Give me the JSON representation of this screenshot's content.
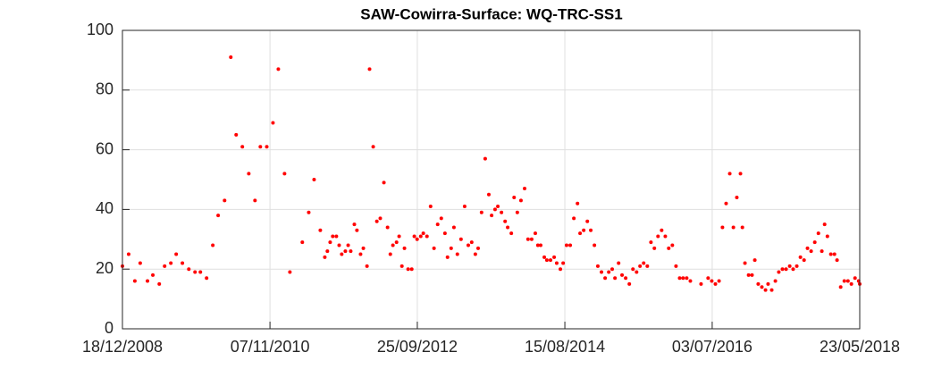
{
  "chart_data": {
    "type": "scatter",
    "title": "SAW-Cowirra-Surface: WQ-TRC-SS1",
    "color": "#ff0000",
    "grid": true,
    "xlim": [
      "18/12/2008",
      "23/05/2018"
    ],
    "xticks": [
      "18/12/2008",
      "07/11/2010",
      "25/09/2012",
      "15/08/2014",
      "03/07/2016",
      "23/05/2018"
    ],
    "ylim": [
      0,
      100
    ],
    "yticks": [
      0,
      20,
      40,
      60,
      80,
      100
    ],
    "x": [
      "18/12/2008",
      "16/01/2009",
      "14/02/2009",
      "11/03/2009",
      "14/04/2009",
      "09/05/2009",
      "08/06/2009",
      "03/07/2009",
      "01/08/2009",
      "26/08/2009",
      "24/09/2009",
      "24/10/2009",
      "22/11/2009",
      "17/12/2009",
      "15/01/2010",
      "13/02/2010",
      "10/03/2010",
      "09/04/2010",
      "08/05/2010",
      "02/06/2010",
      "01/07/2010",
      "31/07/2010",
      "29/08/2010",
      "23/09/2010",
      "23/10/2010",
      "21/11/2010",
      "16/12/2010",
      "14/01/2011",
      "08/02/2011",
      "07/04/2011",
      "07/05/2011",
      "01/06/2011",
      "30/06/2011",
      "21/07/2011",
      "02/08/2011",
      "15/08/2011",
      "27/08/2011",
      "13/09/2011",
      "26/09/2011",
      "08/10/2011",
      "25/10/2011",
      "07/11/2011",
      "19/11/2011",
      "06/12/2011",
      "18/12/2011",
      "04/01/2012",
      "17/01/2012",
      "03/02/2012",
      "15/02/2012",
      "03/03/2012",
      "20/03/2012",
      "05/04/2012",
      "22/04/2012",
      "09/05/2012",
      "22/05/2012",
      "03/06/2012",
      "20/06/2012",
      "02/07/2012",
      "15/07/2012",
      "27/07/2012",
      "13/08/2012",
      "30/08/2012",
      "11/09/2012",
      "24/09/2012",
      "11/10/2012",
      "23/10/2012",
      "09/11/2012",
      "26/11/2012",
      "12/12/2012",
      "29/12/2012",
      "15/01/2013",
      "01/02/2013",
      "13/02/2013",
      "02/03/2013",
      "15/03/2013",
      "31/03/2013",
      "17/04/2013",
      "04/05/2013",
      "21/05/2013",
      "06/06/2013",
      "23/06/2013",
      "06/07/2013",
      "22/07/2013",
      "08/08/2013",
      "25/08/2013",
      "07/09/2013",
      "23/09/2013",
      "06/10/2013",
      "23/10/2013",
      "09/11/2013",
      "21/11/2013",
      "08/12/2013",
      "21/12/2013",
      "05/01/2014",
      "22/01/2014",
      "08/02/2014",
      "24/02/2014",
      "13/03/2014",
      "30/03/2014",
      "11/04/2014",
      "24/04/2014",
      "11/05/2014",
      "23/05/2014",
      "09/06/2014",
      "26/06/2014",
      "08/07/2014",
      "25/07/2014",
      "07/08/2014",
      "23/08/2014",
      "09/09/2014",
      "26/09/2014",
      "13/10/2014",
      "25/10/2014",
      "11/11/2014",
      "28/11/2014",
      "14/12/2014",
      "31/12/2014",
      "16/01/2015",
      "02/02/2015",
      "19/02/2015",
      "08/03/2015",
      "24/03/2015",
      "06/04/2015",
      "23/04/2015",
      "09/05/2015",
      "26/05/2015",
      "12/06/2015",
      "29/06/2015",
      "16/07/2015",
      "01/08/2015",
      "18/08/2015",
      "04/09/2015",
      "21/09/2015",
      "07/10/2015",
      "24/10/2015",
      "10/11/2015",
      "27/11/2015",
      "13/12/2015",
      "30/12/2015",
      "16/01/2016",
      "02/02/2016",
      "18/02/2016",
      "06/03/2016",
      "23/03/2016",
      "12/05/2016",
      "14/06/2016",
      "01/07/2016",
      "18/07/2016",
      "04/08/2016",
      "20/08/2016",
      "06/09/2016",
      "23/09/2016",
      "10/10/2016",
      "26/10/2016",
      "12/11/2016",
      "21/11/2016",
      "03/12/2016",
      "20/12/2016",
      "05/01/2017",
      "18/01/2017",
      "03/02/2017",
      "20/02/2017",
      "09/03/2017",
      "21/03/2017",
      "07/04/2017",
      "24/04/2017",
      "10/05/2017",
      "27/05/2017",
      "13/06/2017",
      "30/06/2017",
      "16/07/2017",
      "02/08/2017",
      "19/08/2017",
      "05/09/2017",
      "21/09/2017",
      "08/10/2017",
      "25/10/2017",
      "11/11/2017",
      "27/11/2017",
      "10/12/2017",
      "23/12/2017",
      "08/01/2018",
      "25/01/2018",
      "06/02/2018",
      "23/02/2018",
      "12/03/2018",
      "29/03/2018",
      "14/04/2018",
      "01/05/2018",
      "18/05/2018",
      "23/05/2018"
    ],
    "values": [
      21,
      25,
      16,
      22,
      16,
      18,
      15,
      21,
      22,
      25,
      22,
      20,
      19,
      19,
      17,
      28,
      38,
      43,
      91,
      65,
      61,
      52,
      43,
      61,
      61,
      69,
      87,
      52,
      19,
      29,
      39,
      50,
      33,
      24,
      26,
      29,
      31,
      31,
      28,
      25,
      26,
      28,
      26,
      35,
      33,
      25,
      27,
      21,
      87,
      61,
      36,
      37,
      49,
      34,
      25,
      28,
      29,
      31,
      21,
      27,
      20,
      20,
      31,
      30,
      31,
      32,
      31,
      41,
      27,
      35,
      37,
      32,
      24,
      27,
      34,
      25,
      30,
      41,
      28,
      29,
      25,
      27,
      39,
      57,
      45,
      38,
      40,
      41,
      39,
      36,
      34,
      32,
      44,
      39,
      43,
      47,
      30,
      30,
      32,
      28,
      28,
      24,
      23,
      23,
      24,
      22,
      20,
      22,
      28,
      28,
      37,
      42,
      32,
      33,
      36,
      33,
      28,
      21,
      19,
      17,
      19,
      20,
      17,
      22,
      18,
      17,
      15,
      20,
      19,
      21,
      22,
      21,
      29,
      27,
      31,
      33,
      31,
      27,
      28,
      21,
      17,
      17,
      17,
      16,
      15,
      17,
      16,
      15,
      16,
      34,
      42,
      52,
      34,
      44,
      52,
      34,
      22,
      18,
      18,
      23,
      15,
      14,
      13,
      15,
      13,
      16,
      19,
      20,
      20,
      21,
      20,
      21,
      24,
      23,
      27,
      26,
      29,
      32,
      26,
      35,
      31,
      25,
      25,
      23,
      14,
      16,
      16,
      15,
      17,
      16,
      15
    ]
  }
}
